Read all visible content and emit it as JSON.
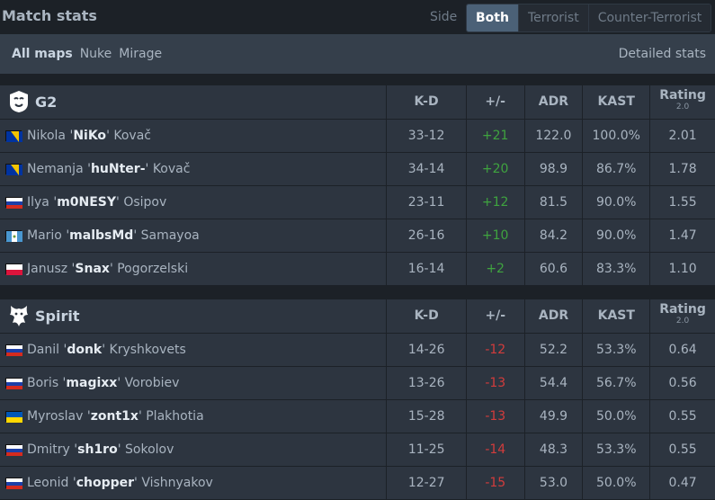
{
  "header": {
    "title": "Match stats",
    "side_label": "Side",
    "side_tabs": [
      "Both",
      "Terrorist",
      "Counter-Terrorist"
    ],
    "active_side": "Both"
  },
  "maps": {
    "tabs": [
      "All maps",
      "Nuke",
      "Mirage"
    ],
    "active": "All maps",
    "detailed_link": "Detailed stats"
  },
  "columns": [
    "K-D",
    "+/-",
    "ADR",
    "KAST",
    "Rating",
    "2.0"
  ],
  "teams": [
    {
      "name": "G2",
      "logo_icon": "g2-logo-icon",
      "players": [
        {
          "first": "Nikola '",
          "nick": "NiKo",
          "last": "' Kovač",
          "flag": "bosnia-flag-icon",
          "kd": "33-12",
          "pm": "+21",
          "adr": "122.0",
          "kast": "100.0%",
          "rating": "2.01"
        },
        {
          "first": "Nemanja '",
          "nick": "huNter-",
          "last": "' Kovač",
          "flag": "bosnia-flag-icon",
          "kd": "34-14",
          "pm": "+20",
          "adr": "98.9",
          "kast": "86.7%",
          "rating": "1.78"
        },
        {
          "first": "Ilya '",
          "nick": "m0NESY",
          "last": "' Osipov",
          "flag": "russia-flag-icon",
          "kd": "23-11",
          "pm": "+12",
          "adr": "81.5",
          "kast": "90.0%",
          "rating": "1.55"
        },
        {
          "first": "Mario '",
          "nick": "malbsMd",
          "last": "' Samayoa",
          "flag": "guatemala-flag-icon",
          "kd": "26-16",
          "pm": "+10",
          "adr": "84.2",
          "kast": "90.0%",
          "rating": "1.47"
        },
        {
          "first": "Janusz '",
          "nick": "Snax",
          "last": "' Pogorzelski",
          "flag": "poland-flag-icon",
          "kd": "16-14",
          "pm": "+2",
          "adr": "60.6",
          "kast": "83.3%",
          "rating": "1.10"
        }
      ]
    },
    {
      "name": "Spirit",
      "logo_icon": "spirit-logo-icon",
      "players": [
        {
          "first": "Danil '",
          "nick": "donk",
          "last": "' Kryshkovets",
          "flag": "russia-flag-icon",
          "kd": "14-26",
          "pm": "-12",
          "adr": "52.2",
          "kast": "53.3%",
          "rating": "0.64"
        },
        {
          "first": "Boris '",
          "nick": "magixx",
          "last": "' Vorobiev",
          "flag": "russia-flag-icon",
          "kd": "13-26",
          "pm": "-13",
          "adr": "54.4",
          "kast": "56.7%",
          "rating": "0.56"
        },
        {
          "first": "Myroslav '",
          "nick": "zont1x",
          "last": "' Plakhotia",
          "flag": "ukraine-flag-icon",
          "kd": "15-28",
          "pm": "-13",
          "adr": "49.9",
          "kast": "50.0%",
          "rating": "0.55"
        },
        {
          "first": "Dmitry '",
          "nick": "sh1ro",
          "last": "' Sokolov",
          "flag": "russia-flag-icon",
          "kd": "11-25",
          "pm": "-14",
          "adr": "48.3",
          "kast": "53.3%",
          "rating": "0.55"
        },
        {
          "first": "Leonid '",
          "nick": "chopper",
          "last": "' Vishnyakov",
          "flag": "russia-flag-icon",
          "kd": "12-27",
          "pm": "-15",
          "adr": "53.0",
          "kast": "50.0%",
          "rating": "0.47"
        }
      ]
    }
  ],
  "colors": {
    "positive": "#3fa33f",
    "negative": "#d23c3c",
    "active_tab": "#4b6177"
  }
}
